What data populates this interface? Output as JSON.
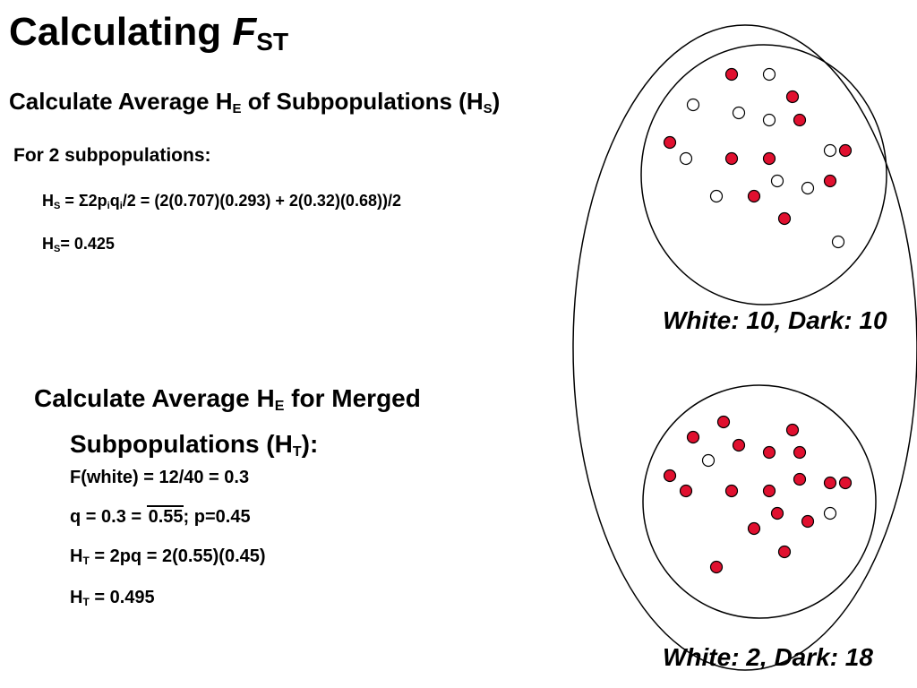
{
  "title": {
    "main": "Calculating ",
    "italic": "F",
    "sub": "ST"
  },
  "section1": {
    "heading_a": "Calculate Average H",
    "heading_sub1": "E",
    "heading_b": " of Subpopulations (H",
    "heading_sub2": "S",
    "heading_c": ")",
    "for_label": "For 2 subpopulations:",
    "eq1_h": "H",
    "eq1_hsub": "S",
    "eq1_a": " = Σ2p",
    "eq1_psub": "i",
    "eq1_b": "q",
    "eq1_qsub": "i",
    "eq1_c": "/2 = (2(0.707)(0.293) + 2(0.32)(0.68))/2",
    "eq2_h": "H",
    "eq2_hsub": "S",
    "eq2_c": "= 0.425"
  },
  "section2": {
    "heading_a": "Calculate Average H",
    "heading_sub1": "E",
    "heading_b": " for Merged",
    "heading_c": "Subpopulations (H",
    "heading_sub2": "T",
    "heading_d": "):",
    "line1": "F(white) = 12/40 = 0.3",
    "line2_a": "q = 0.3 = ",
    "line2_rad": "0.55",
    "line2_b": "; p=0.45",
    "line3_h": "H",
    "line3_sub": "T",
    "line3_c": " = 2pq = 2(0.55)(0.45)",
    "line4_h": "H",
    "line4_sub": "T",
    "line4_c": " = 0.495"
  },
  "captions": {
    "top": "White: 10, Dark: 10",
    "bottom": "White: 2, Dark: 18"
  },
  "colors": {
    "dark_dot": "#e0102f",
    "white_dot": "#ffffff",
    "stroke": "#000000"
  },
  "populations": {
    "top": {
      "white": 10,
      "dark": 10
    },
    "bottom": {
      "white": 2,
      "dark": 18
    }
  }
}
